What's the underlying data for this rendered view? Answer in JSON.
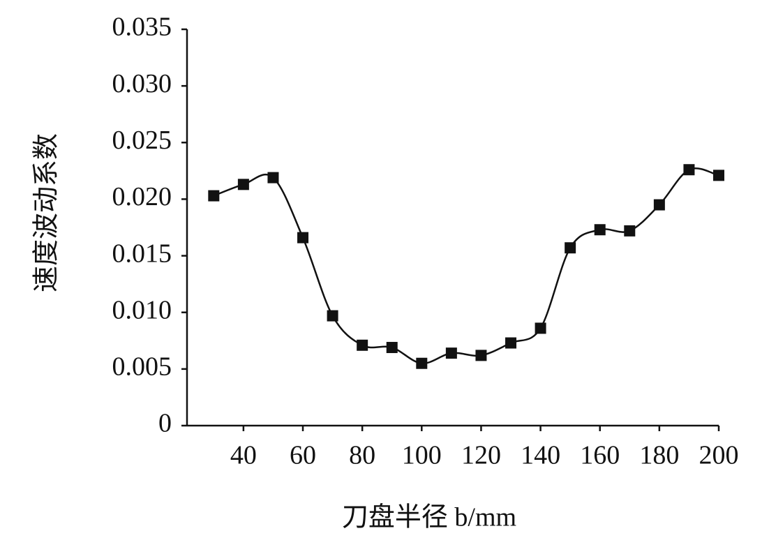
{
  "chart_data": {
    "type": "line",
    "x_label": "刀盘半径 b/mm",
    "y_label": "速度波动系数",
    "x": [
      30,
      40,
      50,
      60,
      70,
      80,
      90,
      100,
      110,
      120,
      130,
      140,
      150,
      160,
      170,
      180,
      190,
      200
    ],
    "series": [
      {
        "color": "#111111",
        "values": [
          0.0203,
          0.0213,
          0.0219,
          0.0166,
          0.0097,
          0.0071,
          0.0069,
          0.0055,
          0.0064,
          0.0062,
          0.0073,
          0.0086,
          0.0157,
          0.0173,
          0.0172,
          0.0195,
          0.0226,
          0.0221
        ]
      }
    ],
    "xlim": [
      21,
      200
    ],
    "xticks": [
      40,
      60,
      80,
      100,
      120,
      140,
      160,
      180,
      200
    ],
    "ylim": [
      0,
      0.035
    ],
    "yticks": [
      0,
      0.005,
      {
        "value": 0.01,
        "label": "0.010"
      },
      0.015,
      {
        "value": 0.02,
        "label": "0.020"
      },
      0.025,
      {
        "value": 0.03,
        "label": "0.030"
      },
      0.035
    ],
    "marker": "square",
    "smooth": true
  }
}
